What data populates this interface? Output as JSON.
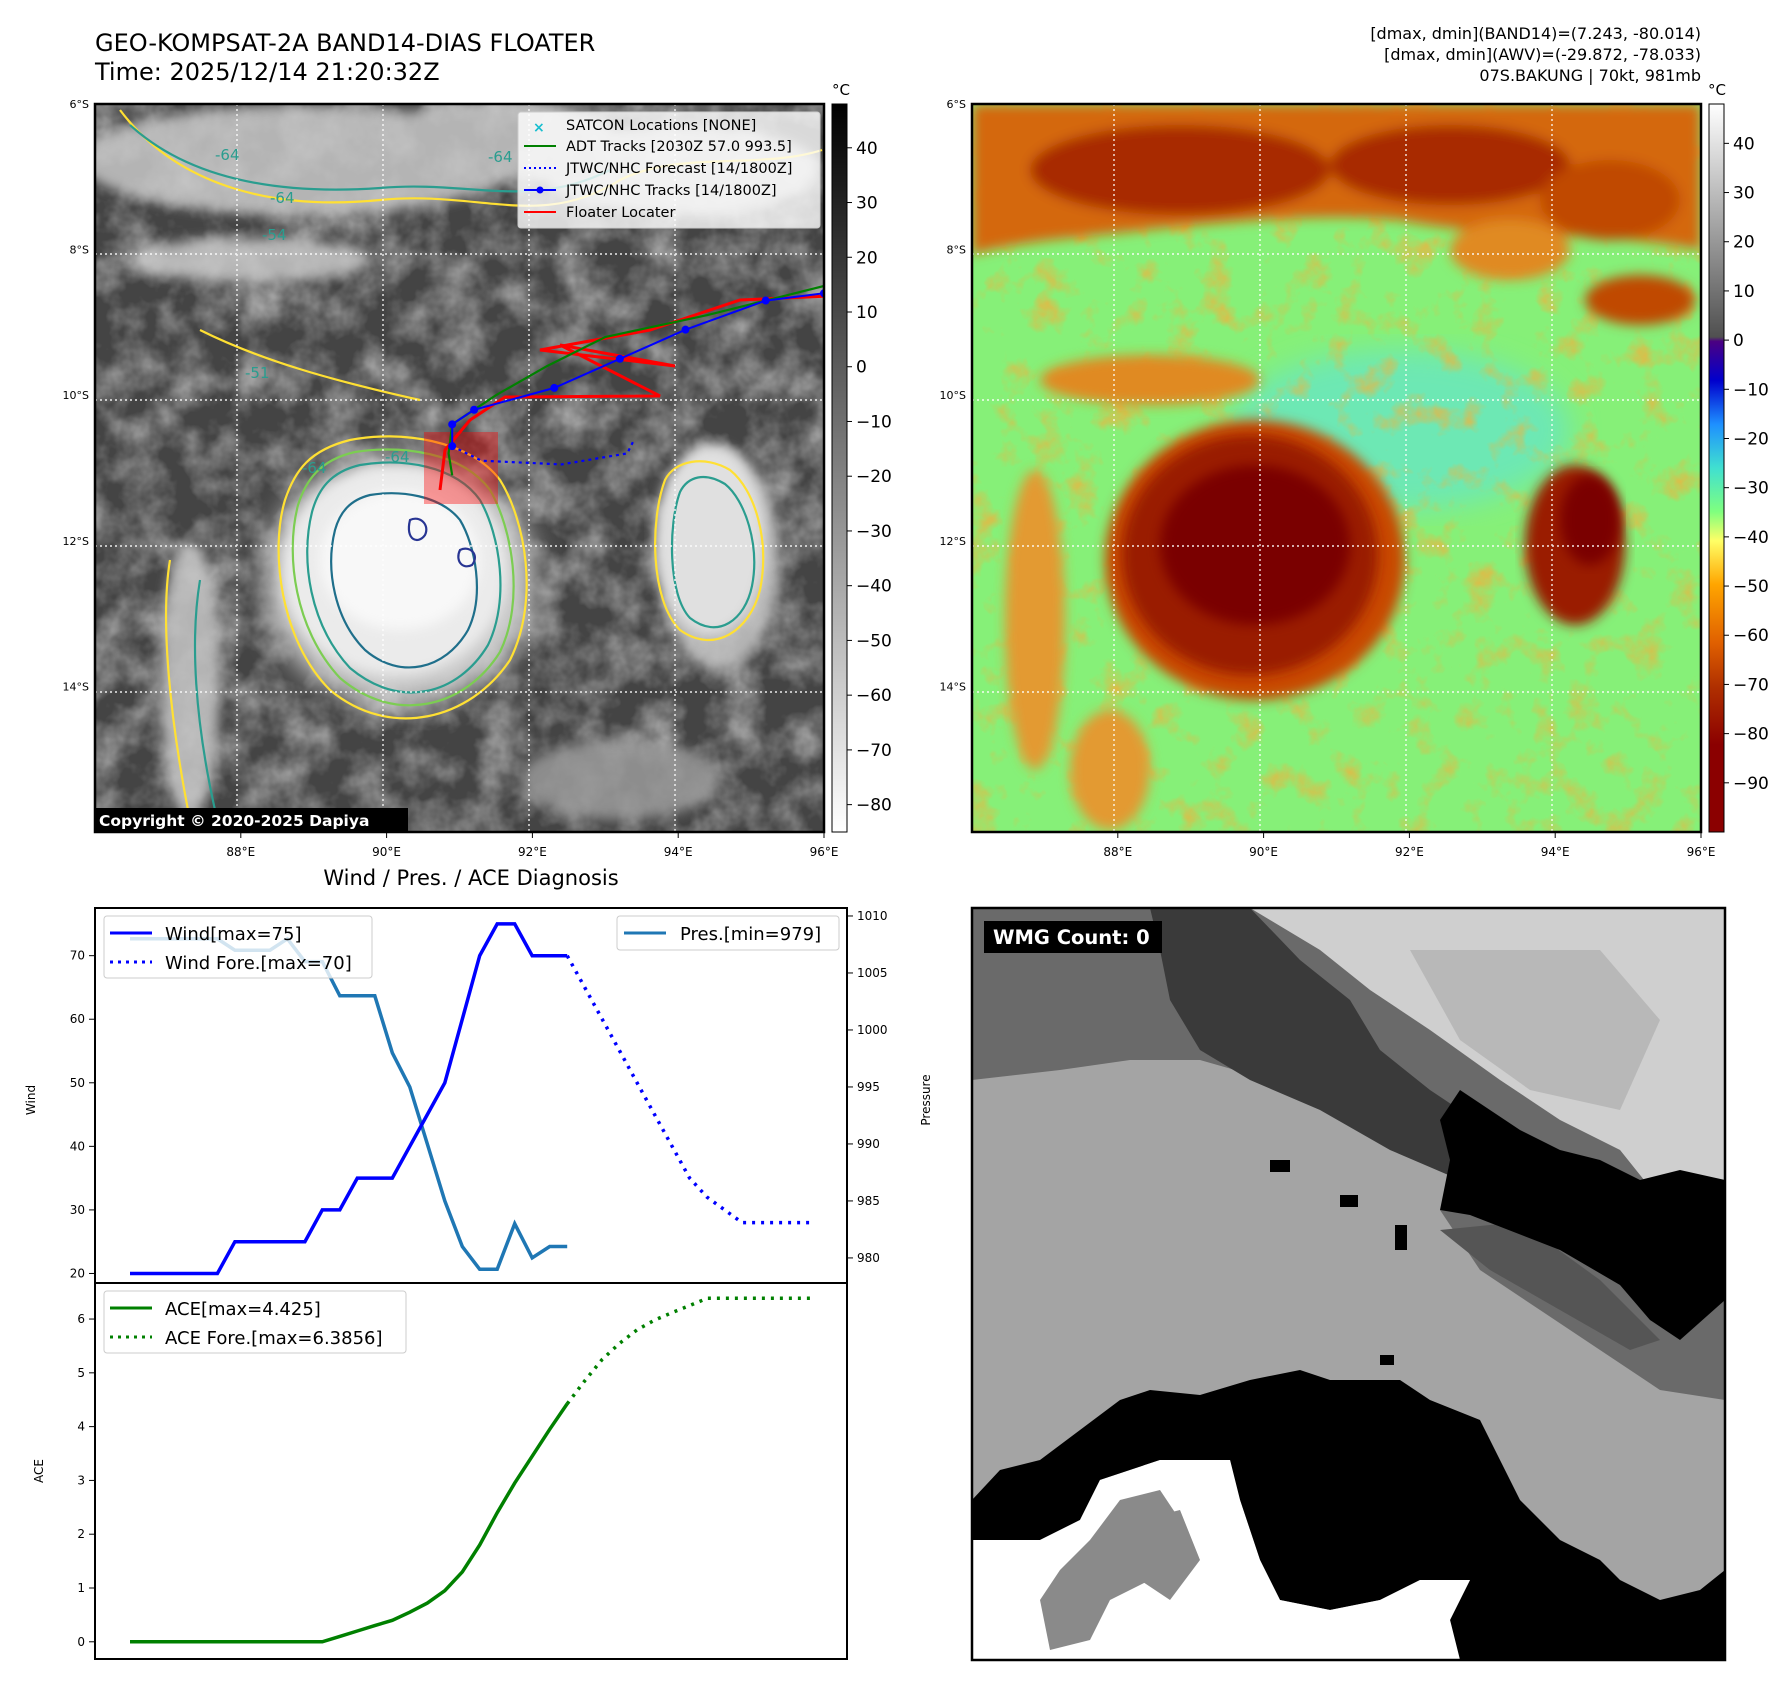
{
  "header": {
    "title_line1": "GEO-KOMPSAT-2A BAND14-DIAS FLOATER",
    "title_line2": "Time: 2025/12/14 21:20:32Z",
    "info_line1": "[dmax, dmin](BAND14)=(7.243, -80.014)",
    "info_line2": "[dmax, dmin](AWV)=(-29.872, -78.033)",
    "info_line3": "07S.BAKUNG | 70kt, 981mb"
  },
  "map": {
    "lat_labels": [
      "6°S",
      "8°S",
      "10°S",
      "12°S",
      "14°S"
    ],
    "lon_labels": [
      "88°E",
      "90°E",
      "92°E",
      "94°E",
      "96°E"
    ],
    "copyright": "Copyright © 2020-2025 Dapiya",
    "contour_labels": [
      "-64",
      "-54",
      "-64",
      "-64",
      "-51",
      "-64",
      "-64"
    ],
    "legend": [
      {
        "label": "SATCON Locations [NONE]",
        "color": "#17becf",
        "style": "x"
      },
      {
        "label": "ADT Tracks [2030Z 57.0 993.5]",
        "color": "#008000",
        "style": "solid"
      },
      {
        "label": "JTWC/NHC Forecast [14/1800Z]",
        "color": "#0000ff",
        "style": "dotted"
      },
      {
        "label": "JTWC/NHC Tracks [14/1800Z]",
        "color": "#0000ff",
        "style": "dot-line"
      },
      {
        "label": "Floater Locater",
        "color": "#ff0000",
        "style": "solid"
      }
    ],
    "colorbar_unit": "°C",
    "ir_colorbar_ticks": [
      "40",
      "30",
      "20",
      "10",
      "0",
      "−10",
      "−20",
      "−30",
      "−40",
      "−50",
      "−60",
      "−70",
      "−80"
    ],
    "ir_colorbar_values": [
      40,
      30,
      20,
      10,
      0,
      -10,
      -20,
      -30,
      -40,
      -50,
      -60,
      -70,
      -80
    ],
    "ir_colorbar_range": [
      48,
      -85
    ],
    "enh_colorbar_ticks": [
      "40",
      "30",
      "20",
      "10",
      "0",
      "−10",
      "−20",
      "−30",
      "−40",
      "−50",
      "−60",
      "−70",
      "−80",
      "−90"
    ],
    "enh_colorbar_values": [
      40,
      30,
      20,
      10,
      0,
      -10,
      -20,
      -30,
      -40,
      -50,
      -60,
      -70,
      -80,
      -90
    ],
    "enh_colorbar_range": [
      48,
      -100
    ],
    "lon_range": [
      86.0,
      96.0
    ],
    "lat_range": [
      -6.0,
      -16.0
    ],
    "jtwc_track": [
      [
        96.0,
        -8.6
      ],
      [
        95.2,
        -8.7
      ],
      [
        94.1,
        -9.1
      ],
      [
        93.2,
        -9.5
      ],
      [
        92.3,
        -9.9
      ],
      [
        91.2,
        -10.2
      ],
      [
        90.9,
        -10.4
      ],
      [
        90.9,
        -10.7
      ]
    ],
    "jtwc_forecast": [
      [
        90.9,
        -10.7
      ],
      [
        91.3,
        -10.9
      ],
      [
        92.4,
        -10.95
      ],
      [
        93.3,
        -10.8
      ],
      [
        93.4,
        -10.6
      ]
    ],
    "adt_track": [
      [
        96.0,
        -8.5
      ],
      [
        94.4,
        -8.9
      ],
      [
        93.0,
        -9.2
      ],
      [
        92.2,
        -9.6
      ],
      [
        91.5,
        -10.0
      ],
      [
        90.9,
        -10.4
      ],
      [
        90.85,
        -10.8
      ],
      [
        90.9,
        -11.1
      ]
    ]
  },
  "diagnosis": {
    "title": "Wind / Pres. / ACE Diagnosis",
    "wind_ylabel": "Wind",
    "pres_ylabel": "Pressure",
    "ace_ylabel": "ACE",
    "wind_legend": [
      "Wind[max=75]",
      "Wind Fore.[max=70]"
    ],
    "pres_legend": "Pres.[min=979]",
    "ace_legend": [
      "ACE[max=4.425]",
      "ACE Fore.[max=6.3856]"
    ],
    "wind_ticks": [
      "20",
      "30",
      "40",
      "50",
      "60",
      "70"
    ],
    "wind_tick_values": [
      20,
      30,
      40,
      50,
      60,
      70
    ],
    "pres_ticks": [
      "980",
      "985",
      "990",
      "995",
      "1000",
      "1005",
      "1010"
    ],
    "pres_tick_values": [
      980,
      985,
      990,
      995,
      1000,
      1005,
      1010
    ],
    "ace_ticks": [
      "0",
      "1",
      "2",
      "3",
      "4",
      "5",
      "6"
    ],
    "ace_tick_values": [
      0,
      1,
      2,
      3,
      4,
      5,
      6
    ]
  },
  "chart_data": [
    {
      "type": "line",
      "xlim": [
        -2,
        41
      ],
      "ylim": [
        18.5,
        77.5
      ],
      "ylabel": "Wind",
      "series": [
        {
          "name": "Wind[max=75]",
          "x": [
            0,
            1,
            2,
            3,
            4,
            5,
            6,
            7,
            8,
            9,
            10,
            11,
            12,
            13,
            14,
            15,
            16,
            17,
            18,
            19,
            20,
            21,
            22,
            23,
            24,
            25
          ],
          "values": [
            20,
            20,
            20,
            20,
            20,
            20,
            25,
            25,
            25,
            25,
            25,
            30,
            30,
            35,
            35,
            35,
            40,
            45,
            50,
            60,
            70,
            75,
            75,
            70,
            70,
            70
          ]
        },
        {
          "name": "Wind Fore.[max=70]",
          "x": [
            25,
            26,
            27,
            28,
            29,
            30,
            31,
            32,
            33,
            34,
            35,
            36,
            37,
            38,
            39
          ],
          "values": [
            70,
            65,
            60,
            55,
            50,
            45,
            40,
            35,
            32,
            30,
            28,
            28,
            28,
            28,
            28
          ]
        }
      ]
    },
    {
      "type": "line",
      "xlim": [
        -2,
        41
      ],
      "ylim": [
        977.8,
        1010.7
      ],
      "ylabel": "Pressure",
      "series": [
        {
          "name": "Pres.[min=979]",
          "x": [
            0,
            1,
            2,
            3,
            4,
            5,
            6,
            7,
            8,
            9,
            10,
            11,
            12,
            13,
            14,
            15,
            16,
            17,
            18,
            19,
            20,
            21,
            22,
            23,
            24,
            25
          ],
          "values": [
            1008,
            1008,
            1008,
            1008,
            1008,
            1008,
            1007,
            1007,
            1007,
            1008,
            1006,
            1006,
            1003,
            1003,
            1003,
            998,
            995,
            990,
            985,
            981,
            979,
            979,
            983,
            980,
            981,
            981
          ]
        }
      ]
    },
    {
      "type": "line",
      "xlim": [
        -2,
        41
      ],
      "ylim": [
        -0.32,
        6.67
      ],
      "ylabel": "ACE",
      "series": [
        {
          "name": "ACE[max=4.425]",
          "x": [
            0,
            1,
            2,
            3,
            4,
            5,
            6,
            7,
            8,
            9,
            10,
            11,
            12,
            13,
            14,
            15,
            16,
            17,
            18,
            19,
            20,
            21,
            22,
            23,
            24,
            25
          ],
          "values": [
            0,
            0,
            0,
            0,
            0,
            0,
            0,
            0,
            0,
            0,
            0,
            0,
            0.1,
            0.2,
            0.3,
            0.4,
            0.55,
            0.72,
            0.95,
            1.3,
            1.8,
            2.4,
            2.95,
            3.45,
            3.95,
            4.425
          ]
        },
        {
          "name": "ACE Fore.[max=6.3856]",
          "x": [
            25,
            26,
            27,
            28,
            29,
            30,
            31,
            32,
            33,
            34,
            35,
            36,
            37,
            38,
            39
          ],
          "values": [
            4.425,
            4.85,
            5.25,
            5.55,
            5.8,
            5.98,
            6.12,
            6.25,
            6.3856,
            6.3856,
            6.3856,
            6.3856,
            6.3856,
            6.3856,
            6.3856
          ]
        }
      ]
    }
  ],
  "wmg": {
    "label": "WMG Count: 0"
  }
}
